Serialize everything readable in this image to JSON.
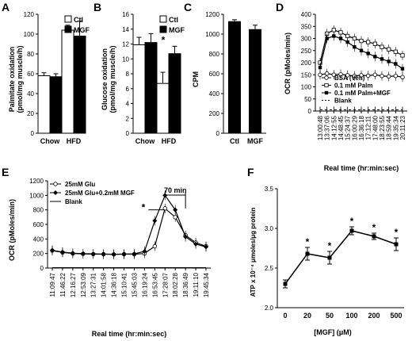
{
  "chart_data": [
    {
      "panel": "A",
      "type": "bar",
      "ylabel": "Palmitate oxidation\n(pmol/mg muscle/h)",
      "ylim": [
        0,
        120
      ],
      "yticks": [
        "0",
        "20",
        "40",
        "60",
        "80",
        "100",
        "120"
      ],
      "categories": [
        "Chow",
        "HFD"
      ],
      "series": [
        {
          "name": "Ctl",
          "values": [
            58,
            104
          ],
          "err": [
            3,
            5
          ],
          "color": "#ffffff"
        },
        {
          "name": "MGF",
          "values": [
            57,
            98
          ],
          "err": [
            3,
            15
          ],
          "color": "#000000"
        }
      ],
      "legend": [
        "Ctl",
        "MGF"
      ]
    },
    {
      "panel": "B",
      "type": "bar",
      "ylabel": "Glucose oxidation\n(pmol/mg muscle/h)",
      "ylim": [
        0,
        16
      ],
      "yticks": [
        "0",
        "2",
        "4",
        "6",
        "8",
        "10",
        "12",
        "14",
        "16"
      ],
      "categories": [
        "Chow",
        "HFD"
      ],
      "series": [
        {
          "name": "Ctl",
          "values": [
            11.9,
            6.7
          ],
          "err": [
            1.0,
            1.5
          ],
          "color": "#ffffff"
        },
        {
          "name": "MGF",
          "values": [
            12.2,
            10.7
          ],
          "err": [
            1.2,
            1.0
          ],
          "color": "#000000"
        }
      ],
      "legend": [
        "Ctl",
        "MGF"
      ],
      "annotations": [
        "*"
      ]
    },
    {
      "panel": "C",
      "type": "bar",
      "ylabel": "CPM",
      "ylim": [
        0,
        1200
      ],
      "yticks": [
        "0",
        "200",
        "400",
        "600",
        "800",
        "1000",
        "1200"
      ],
      "categories": [
        "Ctl",
        "MGF"
      ],
      "values": [
        1130,
        1050
      ],
      "err": [
        15,
        40
      ]
    },
    {
      "panel": "D",
      "type": "line",
      "ylabel": "OCR (pMoles/min)",
      "xlabel": "Real time (hr:min:sec)",
      "ylim": [
        0,
        400
      ],
      "yticks": [
        "0",
        "50",
        "100",
        "150",
        "200",
        "250",
        "300",
        "350",
        "400"
      ],
      "xticks": [
        "13:00:48",
        "13:37:06",
        "14:12:55",
        "14:48:45",
        "15:24:37",
        "16:00:29",
        "16:36:18",
        "17:12:11",
        "17:48:00",
        "18:23:55",
        "18:59:44",
        "19:35:34",
        "20:11:23"
      ],
      "series": [
        {
          "name": "BSA (Veh)",
          "marker": "open-circle",
          "values": [
            150,
            155,
            150,
            152,
            148,
            145,
            148,
            146,
            150,
            145,
            143,
            145,
            140
          ]
        },
        {
          "name": "0.1 mM Palm",
          "marker": "open-square",
          "values": [
            200,
            320,
            335,
            325,
            310,
            300,
            290,
            285,
            278,
            265,
            255,
            245,
            230
          ]
        },
        {
          "name": "0.1 mM Palm+MGF",
          "marker": "filled-square",
          "values": [
            180,
            300,
            310,
            300,
            285,
            265,
            250,
            238,
            225,
            215,
            205,
            195,
            175
          ]
        },
        {
          "name": "Blank",
          "marker": "dash",
          "values": [
            5,
            5,
            5,
            5,
            5,
            5,
            5,
            5,
            5,
            5,
            5,
            5,
            5
          ]
        }
      ]
    },
    {
      "panel": "E",
      "type": "line",
      "ylabel": "OCR (pMoles/min)",
      "xlabel": "Real time (hr:min:sec)",
      "ylim": [
        0,
        1200
      ],
      "yticks": [
        "0",
        "200",
        "400",
        "600",
        "800",
        "1000",
        "1200"
      ],
      "xticks": [
        "11:09:47",
        "11:46:22",
        "12:16:27",
        "12:53:09",
        "13:27:31",
        "14:01:58",
        "14:36:18",
        "15:10:41",
        "15:45:03",
        "16:19:24",
        "16:53:45",
        "17:28:07",
        "18:02:28",
        "18:36:49",
        "19:11:10",
        "19:45:34"
      ],
      "series": [
        {
          "name": "25mM Glu",
          "marker": "open-circle",
          "values": [
            240,
            215,
            200,
            195,
            192,
            190,
            188,
            190,
            190,
            200,
            300,
            820,
            700,
            450,
            350,
            300
          ]
        },
        {
          "name": "25mM Glu+0.2mM MGF",
          "marker": "filled-diamond",
          "values": [
            245,
            220,
            205,
            198,
            195,
            192,
            190,
            192,
            195,
            230,
            650,
            1000,
            800,
            430,
            330,
            290
          ]
        },
        {
          "name": "Blank",
          "marker": "line",
          "values": [
            5,
            5,
            5,
            5,
            5,
            5,
            5,
            5,
            5,
            5,
            5,
            5,
            5,
            5,
            5,
            5
          ]
        }
      ],
      "annotations": [
        "70 min",
        "*"
      ]
    },
    {
      "panel": "F",
      "type": "line",
      "ylabel": "ATP x 10⁻⁴ μmoles/μg protein",
      "xlabel": "[MGF] (μM)",
      "ylim": [
        2.0,
        3.5
      ],
      "yticks": [
        "2.0",
        "2.5",
        "3.0",
        "3.5"
      ],
      "categories": [
        "0",
        "20",
        "50",
        "100",
        "200",
        "500"
      ],
      "values": [
        2.3,
        2.68,
        2.63,
        2.97,
        2.9,
        2.8
      ],
      "err": [
        0.05,
        0.08,
        0.08,
        0.05,
        0.04,
        0.08
      ],
      "annotations": [
        "*",
        "*",
        "*",
        "*",
        "*"
      ]
    }
  ]
}
